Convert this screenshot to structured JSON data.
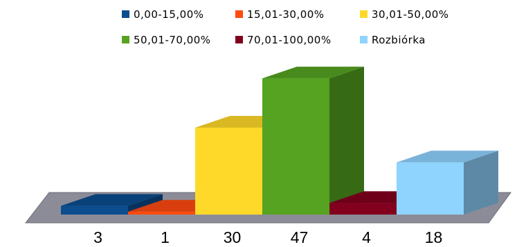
{
  "chart_data": {
    "type": "bar",
    "title": "",
    "xlabel": "",
    "ylabel": "",
    "ylim": [
      0,
      50
    ],
    "grid": false,
    "legend_position": "top",
    "categories": [
      "3",
      "1",
      "30",
      "47",
      "4",
      "18"
    ],
    "values": [
      3,
      1,
      30,
      47,
      4,
      18
    ],
    "legend": [
      "0,00-15,00%",
      "15,01-30,00%",
      "30,01-50,00%",
      "50,01-70,00%",
      "70,01-100,00%",
      "Rozbiórka"
    ],
    "colors": [
      "#0b4d8f",
      "#ff4a10",
      "#ffd92a",
      "#55a321",
      "#82001e",
      "#8fd3ff"
    ]
  }
}
